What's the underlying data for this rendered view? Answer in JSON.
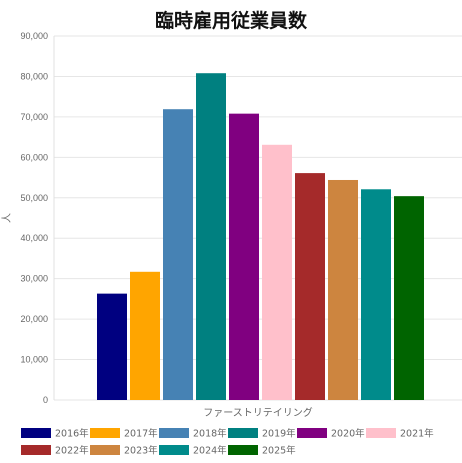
{
  "chart_data": {
    "type": "bar",
    "title": "臨時雇用従業員数",
    "xlabel": "ファーストリテイリング",
    "ylabel": "人",
    "ylim": [
      0,
      90000
    ],
    "yticks": [
      "0",
      "10,000",
      "20,000",
      "30,000",
      "40,000",
      "50,000",
      "60,000",
      "70,000",
      "80,000",
      "90,000"
    ],
    "grid": true,
    "legend_position": "bottom",
    "categories": [
      "ファーストリテイリング"
    ],
    "series": [
      {
        "name": "2016年",
        "values": [
          26300
        ],
        "color": "#000080"
      },
      {
        "name": "2017年",
        "values": [
          31700
        ],
        "color": "#FFA500"
      },
      {
        "name": "2018年",
        "values": [
          71900
        ],
        "color": "#4682B4"
      },
      {
        "name": "2019年",
        "values": [
          80800
        ],
        "color": "#008080"
      },
      {
        "name": "2020年",
        "values": [
          70800
        ],
        "color": "#800080"
      },
      {
        "name": "2021年",
        "values": [
          63100
        ],
        "color": "#FFC0CB"
      },
      {
        "name": "2022年",
        "values": [
          56100
        ],
        "color": "#A52A2A"
      },
      {
        "name": "2023年",
        "values": [
          54400
        ],
        "color": "#CD853F"
      },
      {
        "name": "2024年",
        "values": [
          52100
        ],
        "color": "#008B8B"
      },
      {
        "name": "2025年",
        "values": [
          50400
        ],
        "color": "#006400"
      }
    ]
  }
}
